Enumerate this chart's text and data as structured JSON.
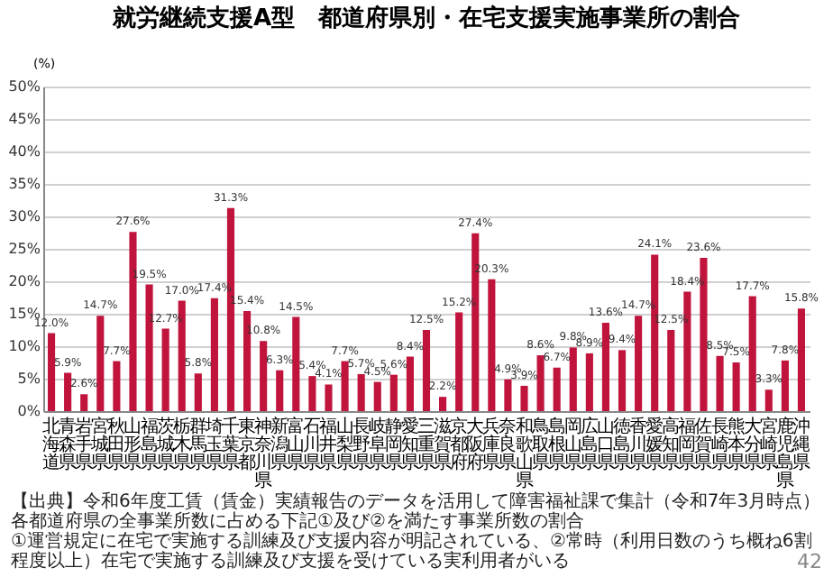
{
  "chart_data": {
    "type": "bar",
    "title": "就労継続支援A型　都道府県別・在宅支援実施事業所の割合",
    "ylabel": "(%)",
    "categories": [
      "北海道",
      "青森県",
      "岩手県",
      "宮城県",
      "秋田県",
      "山形県",
      "福島県",
      "茨城県",
      "栃木県",
      "群馬県",
      "埼玉県",
      "千葉県",
      "東京都",
      "神奈川県",
      "新潟県",
      "富山県",
      "石川県",
      "福井県",
      "山梨県",
      "長野県",
      "岐阜県",
      "静岡県",
      "愛知県",
      "三重県",
      "滋賀県",
      "京都府",
      "大阪府",
      "兵庫県",
      "奈良県",
      "和歌山県",
      "鳥取県",
      "島根県",
      "岡山県",
      "広島県",
      "山口県",
      "徳島県",
      "香川県",
      "愛媛県",
      "高知県",
      "福岡県",
      "佐賀県",
      "長崎県",
      "熊本県",
      "大分県",
      "宮崎県",
      "鹿児島県",
      "沖縄県"
    ],
    "values": [
      12.0,
      5.9,
      2.6,
      14.7,
      7.7,
      27.6,
      19.5,
      12.7,
      17.0,
      5.8,
      17.4,
      31.3,
      15.4,
      10.8,
      6.3,
      14.5,
      5.4,
      4.1,
      7.7,
      5.7,
      4.5,
      5.6,
      8.4,
      12.5,
      2.2,
      15.2,
      27.4,
      20.3,
      4.9,
      3.9,
      8.6,
      6.7,
      9.8,
      8.9,
      13.6,
      9.4,
      14.7,
      24.1,
      12.5,
      18.4,
      23.6,
      8.5,
      7.5,
      17.7,
      3.3,
      7.8,
      15.8
    ],
    "value_labels": [
      "12.0%",
      "5.9%",
      "2.6%",
      "14.7%",
      "7.7%",
      "27.6%",
      "19.5%",
      "12.7%",
      "17.0%",
      "5.8%",
      "17.4%",
      "31.3%",
      "15.4%",
      "10.8%",
      "6.3%",
      "14.5%",
      "5.4%",
      "4.1%",
      "7.7%",
      "5.7%",
      "4.5%",
      "5.6%",
      "8.4%",
      "12.5%",
      "2.2%",
      "15.2%",
      "27.4%",
      "20.3%",
      "4.9%",
      "3.9%",
      "8.6%",
      "6.7%",
      "9.8%",
      "8.9%",
      "13.6%",
      "9.4%",
      "14.7%",
      "24.1%",
      "12.5%",
      "18.4%",
      "23.6%",
      "8.5%",
      "7.5%",
      "17.7%",
      "3.3%",
      "7.8%",
      "15.8%"
    ],
    "color": "#c0143c",
    "ylim": [
      0,
      50
    ],
    "yticks": [
      {
        "value": 0,
        "label": "0%"
      },
      {
        "value": 5,
        "label": "5%"
      },
      {
        "value": 10,
        "label": "10%"
      },
      {
        "value": 15,
        "label": "15%"
      },
      {
        "value": 20,
        "label": "20%"
      },
      {
        "value": 25,
        "label": "25%"
      },
      {
        "value": 30,
        "label": "30%"
      },
      {
        "value": 35,
        "label": "35%"
      },
      {
        "value": 40,
        "label": "40%"
      },
      {
        "value": 45,
        "label": "45%"
      },
      {
        "value": 50,
        "label": "50%"
      }
    ],
    "grid": "y",
    "annotations": [
      "【出典】令和6年度工賃（賃金）実績報告のデータを活用して障害福祉課で集計（令和7年3月時点）",
      "各都道府県の全事業所数に占める下記①及び②を満たす事業所数の割合",
      "①運営規定に在宅で実施する訓練及び支援内容が明記されている、②常時（利用日数のうち概ね6割程度以上）在宅で実施する訓練及び支援を受けている実利用者がいる",
      "42"
    ]
  }
}
